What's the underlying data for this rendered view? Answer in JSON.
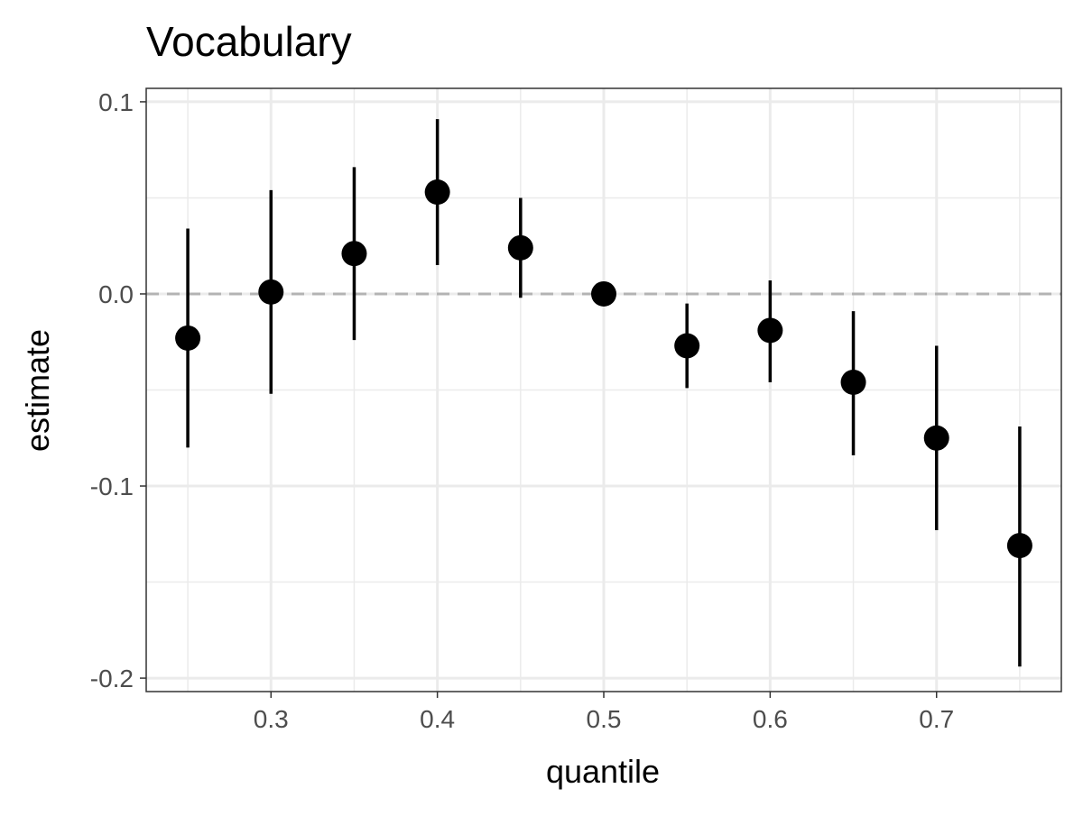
{
  "chart_data": {
    "type": "scatter",
    "title": "Vocabulary",
    "xlabel": "quantile",
    "ylabel": "estimate",
    "xlim": [
      0.225,
      0.775
    ],
    "ylim": [
      -0.207,
      0.107
    ],
    "x_ticks": [
      0.3,
      0.4,
      0.5,
      0.6,
      0.7
    ],
    "x_tick_labels": [
      "0.3",
      "0.4",
      "0.5",
      "0.6",
      "0.7"
    ],
    "x_minor_ticks": [
      0.25,
      0.35,
      0.45,
      0.55,
      0.65,
      0.75
    ],
    "y_ticks": [
      0.1,
      0.0,
      -0.1,
      -0.2
    ],
    "y_tick_labels": [
      "0.1",
      "0.0",
      "-0.1",
      "-0.2"
    ],
    "y_minor_ticks": [
      0.05,
      -0.05,
      -0.15
    ],
    "reference_line": {
      "y": 0.0,
      "style": "dashed",
      "color": "#b3b3b3"
    },
    "grid": true,
    "legend": "none",
    "point_color": "#000000",
    "grid_color": "#ebebeb",
    "panel_border_color": "#333333",
    "points": [
      {
        "x": 0.25,
        "y": -0.023,
        "lower": -0.08,
        "upper": 0.034
      },
      {
        "x": 0.3,
        "y": 0.001,
        "lower": -0.052,
        "upper": 0.054
      },
      {
        "x": 0.35,
        "y": 0.021,
        "lower": -0.024,
        "upper": 0.066
      },
      {
        "x": 0.4,
        "y": 0.053,
        "lower": 0.015,
        "upper": 0.091
      },
      {
        "x": 0.45,
        "y": 0.024,
        "lower": -0.002,
        "upper": 0.05
      },
      {
        "x": 0.5,
        "y": 0.0,
        "lower": 0.0,
        "upper": 0.0
      },
      {
        "x": 0.55,
        "y": -0.027,
        "lower": -0.049,
        "upper": -0.005
      },
      {
        "x": 0.6,
        "y": -0.019,
        "lower": -0.046,
        "upper": 0.007
      },
      {
        "x": 0.65,
        "y": -0.046,
        "lower": -0.084,
        "upper": -0.009
      },
      {
        "x": 0.7,
        "y": -0.075,
        "lower": -0.123,
        "upper": -0.027
      },
      {
        "x": 0.75,
        "y": -0.131,
        "lower": -0.194,
        "upper": -0.069
      }
    ]
  }
}
